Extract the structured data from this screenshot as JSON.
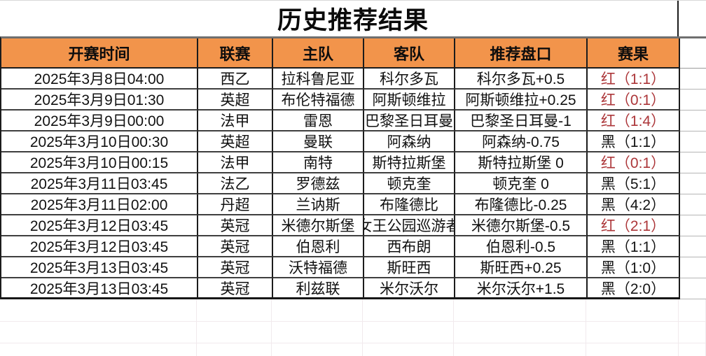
{
  "title": "历史推荐结果",
  "colors": {
    "header_bg": "#f2944b",
    "result_red": "#ac3639",
    "result_black": "#141414",
    "grid_dark": "#1c1c1c",
    "grid_light": "#f1eaed"
  },
  "table": {
    "headers": [
      "开赛时间",
      "联赛",
      "主队",
      "客队",
      "推荐盘口",
      "赛果"
    ],
    "rows": [
      {
        "time": "2025年3月8日04:00",
        "league": "西乙",
        "home": "拉科鲁尼亚",
        "away": "科尔多瓦",
        "handicap": "科尔多瓦+0.5",
        "result": "红（1:1）",
        "result_color": "red"
      },
      {
        "time": "2025年3月9日01:30",
        "league": "英超",
        "home": "布伦特福德",
        "away": "阿斯顿维拉",
        "handicap": "阿斯顿维拉+0.25",
        "result": "红（0:1）",
        "result_color": "red"
      },
      {
        "time": "2025年3月9日00:00",
        "league": "法甲",
        "home": "雷恩",
        "away": "巴黎圣日耳曼",
        "handicap": "巴黎圣日耳曼-1",
        "result": "红（1:4）",
        "result_color": "red"
      },
      {
        "time": "2025年3月10日00:30",
        "league": "英超",
        "home": "曼联",
        "away": "阿森纳",
        "handicap": "阿森纳-0.75",
        "result": "黑（1:1）",
        "result_color": "black"
      },
      {
        "time": "2025年3月10日00:15",
        "league": "法甲",
        "home": "南特",
        "away": "斯特拉斯堡",
        "handicap": "斯特拉斯堡 0",
        "result": "红（0:1）",
        "result_color": "red"
      },
      {
        "time": "2025年3月11日03:45",
        "league": "法乙",
        "home": "罗德兹",
        "away": "顿克奎",
        "handicap": "顿克奎 0",
        "result": "黑（5:1）",
        "result_color": "black"
      },
      {
        "time": "2025年3月11日02:00",
        "league": "丹超",
        "home": "兰讷斯",
        "away": "布隆德比",
        "handicap": "布隆德比-0.25",
        "result": "黑（4:2）",
        "result_color": "black"
      },
      {
        "time": "2025年3月12日03:45",
        "league": "英冠",
        "home": "米德尔斯堡",
        "away": "女王公园巡游者",
        "handicap": "米德尔斯堡-0.5",
        "result": "红（2:1）",
        "result_color": "red"
      },
      {
        "time": "2025年3月12日03:45",
        "league": "英冠",
        "home": "伯恩利",
        "away": "西布朗",
        "handicap": "伯恩利-0.5",
        "result": "黑（1:1）",
        "result_color": "black"
      },
      {
        "time": "2025年3月13日03:45",
        "league": "英冠",
        "home": "沃特福德",
        "away": "斯旺西",
        "handicap": "斯旺西+0.25",
        "result": "黑（1:0）",
        "result_color": "black"
      },
      {
        "time": "2025年3月13日03:45",
        "league": "英冠",
        "home": "利兹联",
        "away": "米尔沃尔",
        "handicap": "米尔沃尔+1.5",
        "result": "黑（2:0）",
        "result_color": "black"
      }
    ]
  }
}
